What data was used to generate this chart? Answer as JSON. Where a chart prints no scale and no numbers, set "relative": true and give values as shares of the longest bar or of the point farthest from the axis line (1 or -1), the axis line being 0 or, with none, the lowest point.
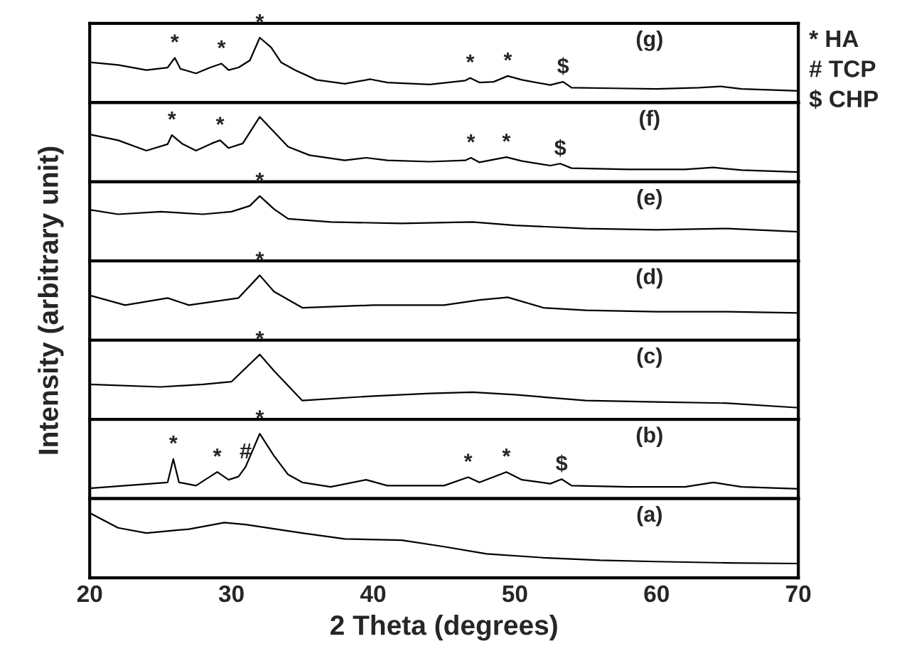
{
  "chart_data": [
    {
      "type": "line",
      "title": "(g)",
      "relative": true,
      "xlim": [
        20,
        70
      ],
      "xticks": [
        20,
        30,
        40,
        50,
        60,
        70
      ],
      "tick_labels": false,
      "marker": "none",
      "x": [
        20,
        22,
        24,
        25.5,
        26.0,
        26.4,
        27.5,
        28.5,
        29.3,
        29.8,
        30.5,
        31.3,
        32.0,
        32.8,
        33.5,
        34.5,
        36,
        38,
        39.8,
        41,
        44,
        46.5,
        46.85,
        47.5,
        48.5,
        49.5,
        50.5,
        52.5,
        53.4,
        54,
        57,
        60,
        63,
        64.5,
        66,
        70
      ],
      "series": [
        {
          "color": "#000000",
          "values": [
            0.62,
            0.58,
            0.5,
            0.54,
            0.69,
            0.52,
            0.45,
            0.54,
            0.6,
            0.5,
            0.54,
            0.65,
            1.0,
            0.85,
            0.62,
            0.5,
            0.35,
            0.29,
            0.36,
            0.31,
            0.28,
            0.34,
            0.38,
            0.31,
            0.32,
            0.41,
            0.35,
            0.27,
            0.32,
            0.23,
            0.22,
            0.21,
            0.23,
            0.25,
            0.21,
            0.18
          ]
        }
      ],
      "annotations": [
        "* HA",
        "# TCP",
        "$ CHP",
        {
          "text": "*",
          "x": 26.0,
          "y": 0.69
        },
        {
          "text": "*",
          "x": 29.3,
          "y": 0.6
        },
        {
          "text": "*",
          "x": 32.0,
          "y": 1.0
        },
        {
          "text": "*",
          "x": 46.85,
          "y": 0.38
        },
        {
          "text": "*",
          "x": 49.5,
          "y": 0.41
        },
        {
          "text": "$",
          "x": 53.4,
          "y": 0.32
        }
      ]
    },
    {
      "type": "line",
      "title": "(f)",
      "relative": true,
      "xlim": [
        20,
        70
      ],
      "xticks": [
        20,
        30,
        40,
        50,
        60,
        70
      ],
      "tick_labels": false,
      "marker": "none",
      "x": [
        20,
        22,
        24,
        25.5,
        25.8,
        26.5,
        27.5,
        28.6,
        29.2,
        29.8,
        30.8,
        32.0,
        33,
        34,
        35.5,
        38,
        39.5,
        41,
        44,
        46.5,
        46.9,
        47.5,
        49.4,
        50.5,
        52.5,
        53.2,
        54,
        58,
        62,
        64,
        66,
        70
      ],
      "series": [
        {
          "color": "#000000",
          "values": [
            0.73,
            0.64,
            0.48,
            0.58,
            0.72,
            0.59,
            0.48,
            0.59,
            0.64,
            0.52,
            0.59,
            1.0,
            0.77,
            0.54,
            0.41,
            0.33,
            0.37,
            0.33,
            0.31,
            0.33,
            0.37,
            0.3,
            0.38,
            0.32,
            0.25,
            0.28,
            0.21,
            0.19,
            0.19,
            0.22,
            0.18,
            0.15
          ]
        }
      ],
      "annotations": [
        {
          "text": "*",
          "x": 25.8,
          "y": 0.72
        },
        {
          "text": "*",
          "x": 29.2,
          "y": 0.64
        },
        {
          "text": "*",
          "x": 46.9,
          "y": 0.37
        },
        {
          "text": "*",
          "x": 49.4,
          "y": 0.38
        },
        {
          "text": "$",
          "x": 53.2,
          "y": 0.28
        }
      ]
    },
    {
      "type": "line",
      "title": "(e)",
      "relative": true,
      "xlim": [
        20,
        70
      ],
      "xticks": [
        20,
        30,
        40,
        50,
        60,
        70
      ],
      "tick_labels": false,
      "marker": "none",
      "x": [
        20,
        22,
        25,
        28,
        30,
        31.3,
        32,
        33,
        34,
        37,
        42,
        47,
        50,
        55,
        60,
        65,
        70
      ],
      "series": [
        {
          "color": "#000000",
          "values": [
            0.79,
            0.72,
            0.76,
            0.72,
            0.76,
            0.85,
            1.0,
            0.8,
            0.65,
            0.6,
            0.58,
            0.6,
            0.55,
            0.5,
            0.48,
            0.5,
            0.45
          ]
        }
      ],
      "annotations": [
        {
          "text": "*",
          "x": 32,
          "y": 1.0
        }
      ]
    },
    {
      "type": "line",
      "title": "(d)",
      "relative": true,
      "xlim": [
        20,
        70
      ],
      "xticks": [
        20,
        30,
        40,
        50,
        60,
        70
      ],
      "tick_labels": false,
      "marker": "none",
      "ylabel": "Intensity (arbitrary unit)",
      "x": [
        20,
        22.5,
        25.5,
        27,
        30.5,
        32,
        33,
        35,
        40,
        45,
        47.5,
        49.5,
        52,
        55,
        60,
        65,
        70
      ],
      "series": [
        {
          "color": "#000000",
          "values": [
            0.69,
            0.54,
            0.65,
            0.54,
            0.65,
            1.0,
            0.75,
            0.5,
            0.54,
            0.54,
            0.62,
            0.66,
            0.5,
            0.46,
            0.44,
            0.44,
            0.42
          ]
        }
      ],
      "annotations": [
        {
          "text": "*",
          "x": 32,
          "y": 1.0
        }
      ]
    },
    {
      "type": "line",
      "title": "(c)",
      "relative": true,
      "xlim": [
        20,
        70
      ],
      "xticks": [
        20,
        30,
        40,
        50,
        60,
        70
      ],
      "tick_labels": false,
      "marker": "none",
      "x": [
        20,
        25,
        28,
        30,
        32,
        33,
        35,
        40,
        44,
        47,
        50,
        55,
        60,
        65,
        70
      ],
      "series": [
        {
          "color": "#000000",
          "values": [
            0.54,
            0.5,
            0.54,
            0.58,
            1.0,
            0.75,
            0.29,
            0.36,
            0.4,
            0.42,
            0.38,
            0.29,
            0.27,
            0.25,
            0.18
          ]
        }
      ],
      "annotations": [
        {
          "text": "*",
          "x": 32,
          "y": 1.0
        }
      ]
    },
    {
      "type": "line",
      "title": "(b)",
      "relative": true,
      "xlim": [
        20,
        70
      ],
      "xticks": [
        20,
        30,
        40,
        50,
        60,
        70
      ],
      "tick_labels": false,
      "marker": "none",
      "x": [
        20,
        25.5,
        25.9,
        26.3,
        27.5,
        29,
        29.8,
        30.5,
        31,
        32,
        33,
        34,
        35,
        37,
        39.5,
        41,
        45,
        46.7,
        47.5,
        49.4,
        50.5,
        52.5,
        53.3,
        54,
        58,
        62,
        64,
        66,
        70
      ],
      "series": [
        {
          "color": "#000000",
          "values": [
            0.16,
            0.25,
            0.61,
            0.25,
            0.2,
            0.41,
            0.29,
            0.34,
            0.49,
            1.0,
            0.66,
            0.37,
            0.25,
            0.18,
            0.29,
            0.2,
            0.2,
            0.33,
            0.25,
            0.41,
            0.29,
            0.23,
            0.3,
            0.2,
            0.18,
            0.18,
            0.25,
            0.18,
            0.15
          ]
        }
      ],
      "annotations": [
        {
          "text": "*",
          "x": 25.9,
          "y": 0.61
        },
        {
          "text": "*",
          "x": 29,
          "y": 0.41
        },
        {
          "text": "#",
          "x": 31,
          "y": 0.49
        },
        {
          "text": "*",
          "x": 32,
          "y": 1.0
        },
        {
          "text": "*",
          "x": 46.7,
          "y": 0.33
        },
        {
          "text": "*",
          "x": 49.4,
          "y": 0.41
        },
        {
          "text": "$",
          "x": 53.3,
          "y": 0.3
        }
      ]
    },
    {
      "type": "line",
      "title": "(a)",
      "relative": true,
      "xlim": [
        20,
        70
      ],
      "xticks": [
        20,
        30,
        40,
        50,
        60,
        70
      ],
      "tick_labels": "x",
      "marker": "none",
      "xlabel": "2 Theta (degrees)",
      "x": [
        20,
        22,
        24,
        27,
        29.5,
        31,
        35,
        38,
        42,
        45,
        48,
        52,
        56,
        60,
        65,
        70
      ],
      "series": [
        {
          "color": "#000000",
          "values": [
            1.0,
            0.77,
            0.69,
            0.75,
            0.85,
            0.82,
            0.69,
            0.6,
            0.58,
            0.48,
            0.37,
            0.31,
            0.27,
            0.25,
            0.23,
            0.22
          ]
        }
      ]
    }
  ]
}
